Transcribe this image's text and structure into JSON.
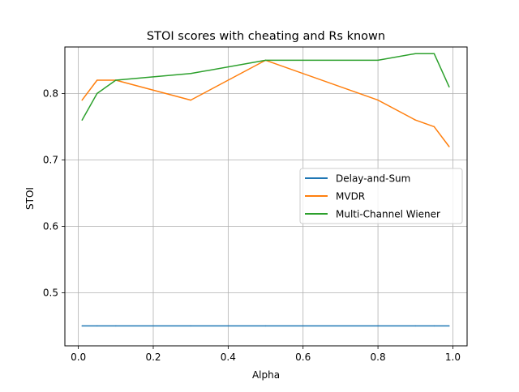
{
  "chart_data": {
    "type": "line",
    "title": "STOI scores with cheating and Rs known",
    "xlabel": "Alpha",
    "ylabel": "STOI",
    "xlim": [
      -0.036,
      1.038
    ],
    "ylim": [
      0.42,
      0.87
    ],
    "xticks": [
      0.0,
      0.2,
      0.4,
      0.6,
      0.8,
      1.0
    ],
    "xtick_labels": [
      "0.0",
      "0.2",
      "0.4",
      "0.6",
      "0.8",
      "1.0"
    ],
    "yticks": [
      0.5,
      0.6,
      0.7,
      0.8
    ],
    "ytick_labels": [
      "0.5",
      "0.6",
      "0.7",
      "0.8"
    ],
    "grid": true,
    "legend_position": "center-right",
    "x": [
      0.01,
      0.05,
      0.1,
      0.3,
      0.5,
      0.8,
      0.9,
      0.95,
      0.99
    ],
    "series": [
      {
        "name": "Delay-and-Sum",
        "color": "#1f77b4",
        "values": [
          0.45,
          0.45,
          0.45,
          0.45,
          0.45,
          0.45,
          0.45,
          0.45,
          0.45
        ]
      },
      {
        "name": "MVDR",
        "color": "#ff7f0e",
        "values": [
          0.79,
          0.82,
          0.82,
          0.79,
          0.85,
          0.79,
          0.76,
          0.75,
          0.72
        ]
      },
      {
        "name": "Multi-Channel Wiener",
        "color": "#2ca02c",
        "values": [
          0.76,
          0.8,
          0.82,
          0.83,
          0.85,
          0.85,
          0.86,
          0.86,
          0.81
        ]
      }
    ]
  }
}
